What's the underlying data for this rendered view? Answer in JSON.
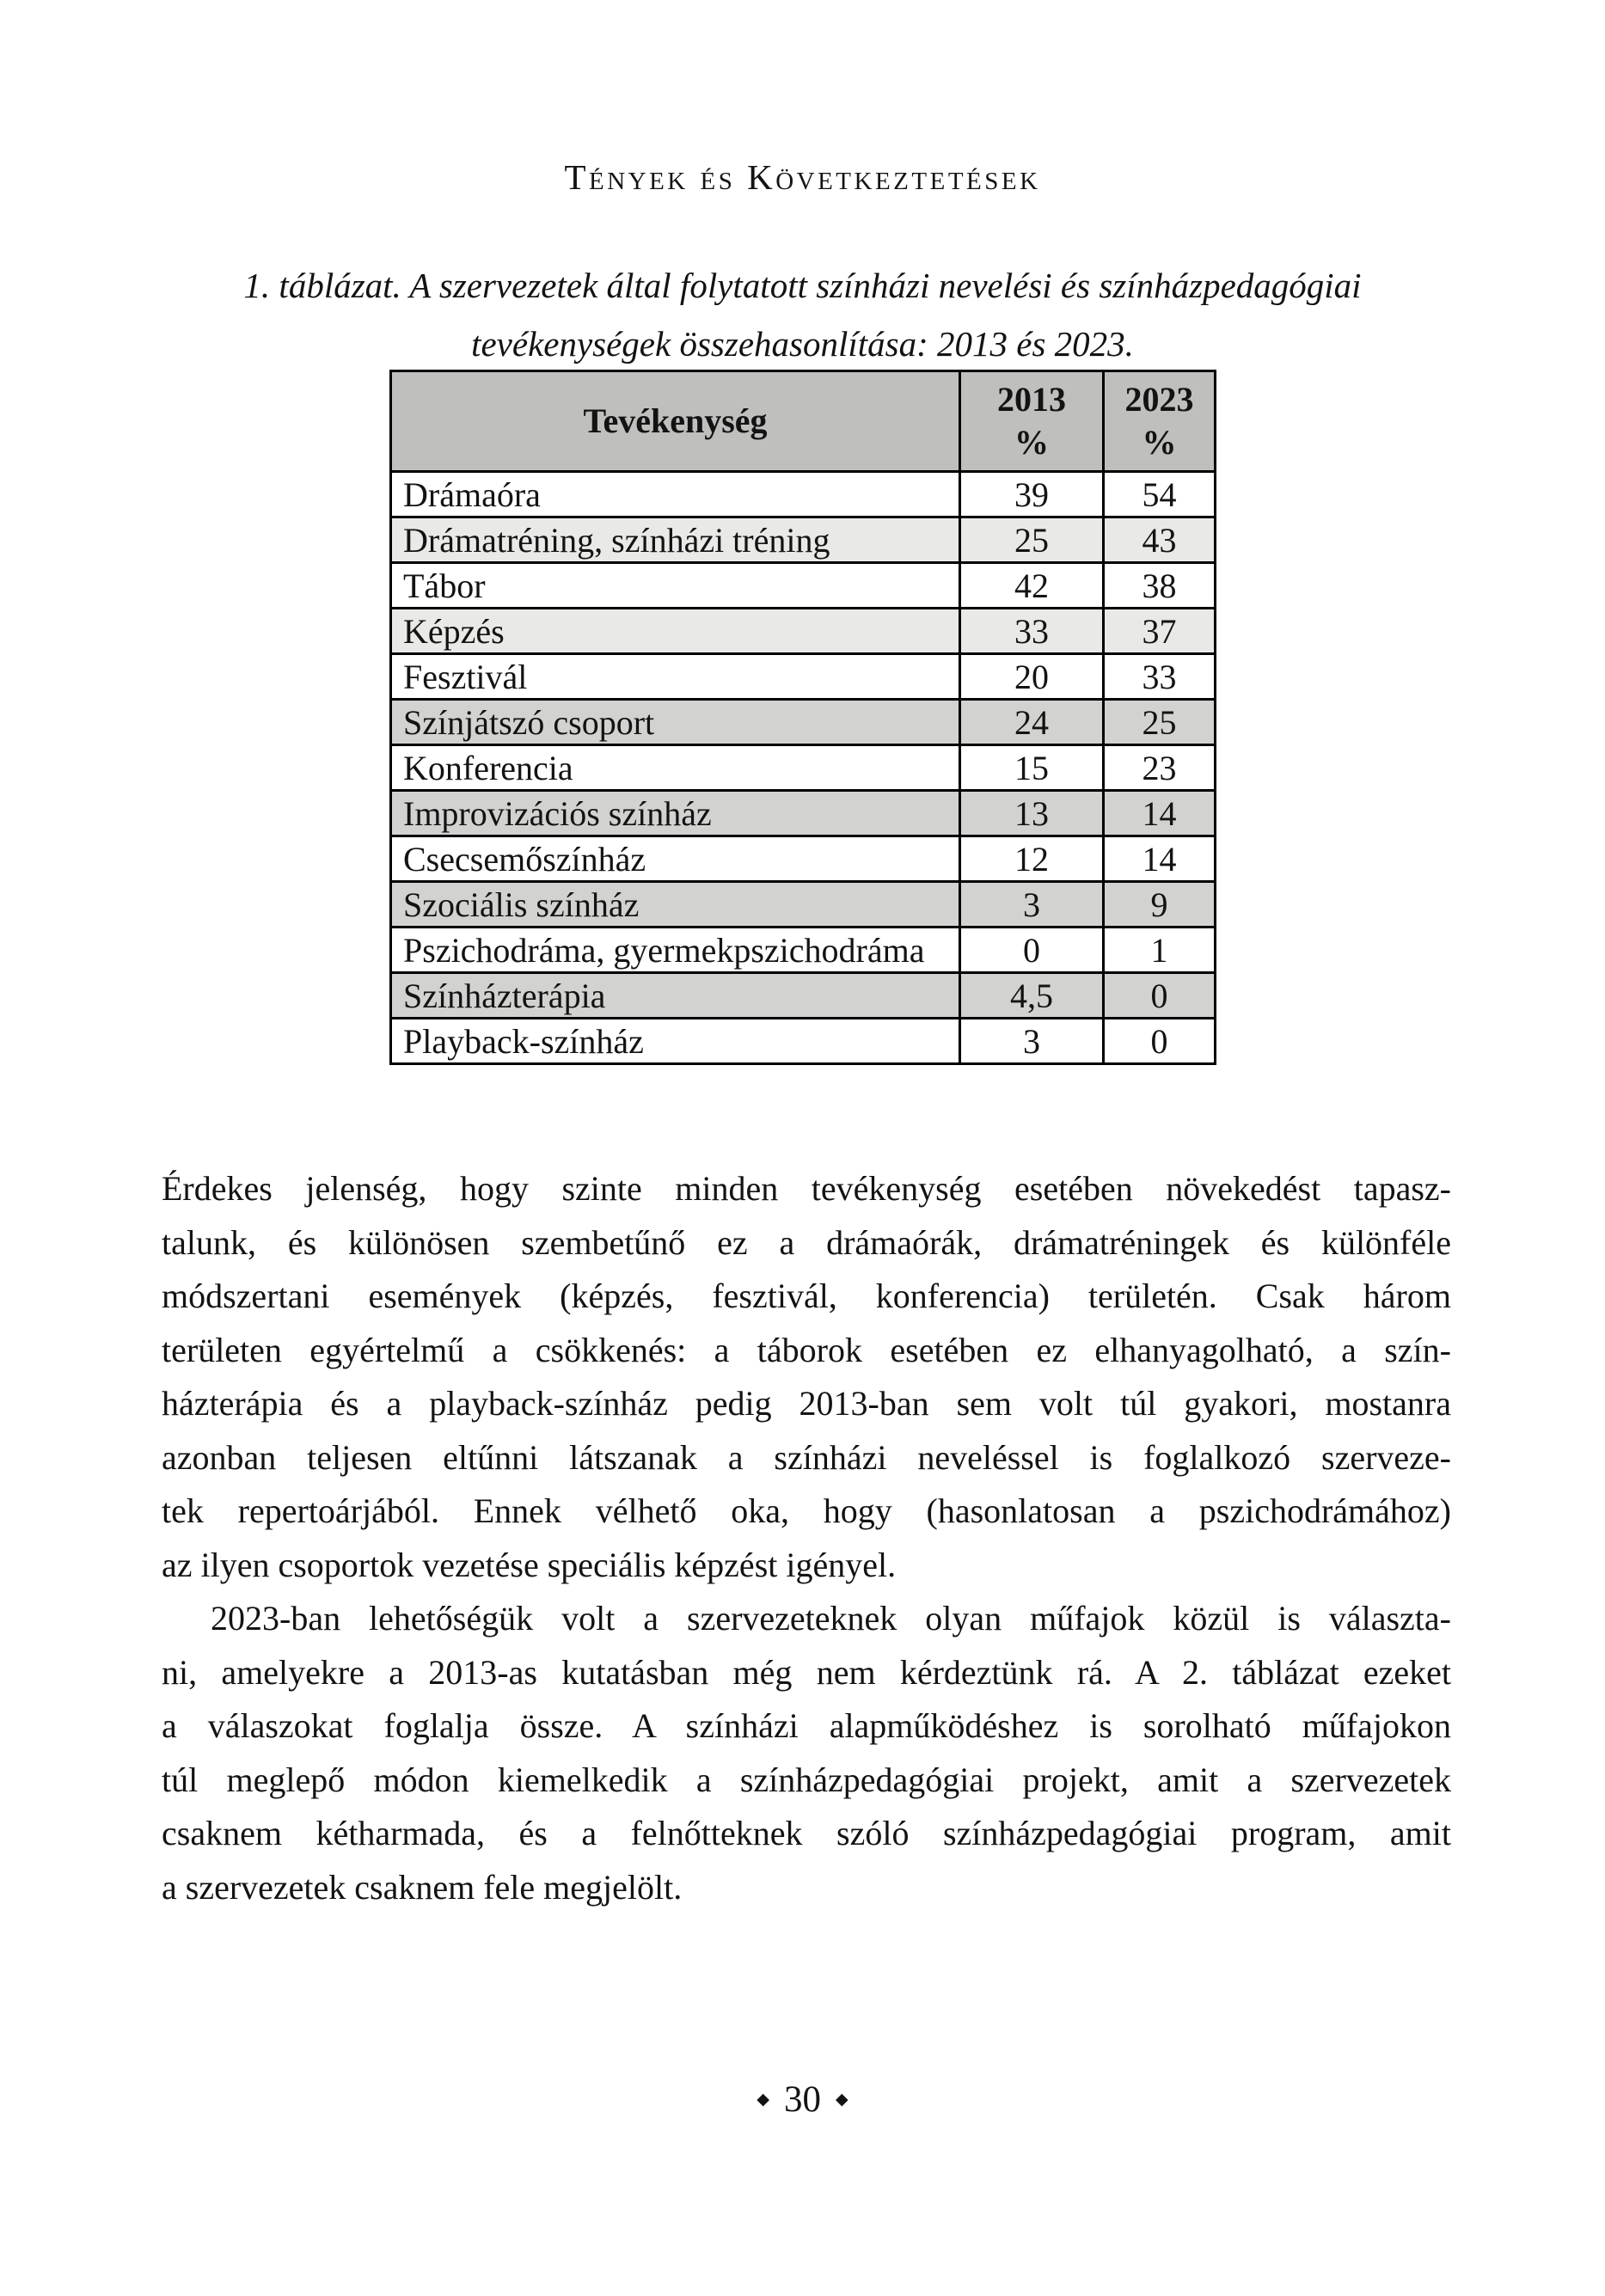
{
  "page": {
    "running_head": "Tények és Következtetések",
    "page_number": "30",
    "ornament": "◆"
  },
  "caption": {
    "lines": [
      "1. táblázat. A szervezetek által folytatott színházi nevelési és színházpedagógiai",
      "tevékenységek összehasonlítása: 2013 és 2023."
    ]
  },
  "table": {
    "header": {
      "activity": "Tevékenység",
      "col2013": {
        "year": "2013",
        "unit": "%"
      },
      "col2023": {
        "year": "2023",
        "unit": "%"
      }
    },
    "rows": [
      {
        "activity": "Drámaóra",
        "y2013": "39",
        "y2023": "54",
        "shade": "white"
      },
      {
        "activity": "Drámatréning, színházi tréning",
        "y2013": "25",
        "y2023": "43",
        "shade": "light"
      },
      {
        "activity": "Tábor",
        "y2013": "42",
        "y2023": "38",
        "shade": "white"
      },
      {
        "activity": "Képzés",
        "y2013": "33",
        "y2023": "37",
        "shade": "light"
      },
      {
        "activity": "Fesztivál",
        "y2013": "20",
        "y2023": "33",
        "shade": "white"
      },
      {
        "activity": "Színjátszó csoport",
        "y2013": "24",
        "y2023": "25",
        "shade": "dark"
      },
      {
        "activity": "Konferencia",
        "y2013": "15",
        "y2023": "23",
        "shade": "white"
      },
      {
        "activity": "Improvizációs színház",
        "y2013": "13",
        "y2023": "14",
        "shade": "dark"
      },
      {
        "activity": "Csecsemőszínház",
        "y2013": "12",
        "y2023": "14",
        "shade": "white"
      },
      {
        "activity": "Szociális színház",
        "y2013": "3",
        "y2023": "9",
        "shade": "dark"
      },
      {
        "activity": "Pszichodráma, gyermekpszichodráma",
        "y2013": "0",
        "y2023": "1",
        "shade": "white"
      },
      {
        "activity": "Színházterápia",
        "y2013": "4,5",
        "y2023": "0",
        "shade": "dark"
      },
      {
        "activity": "Playback-színház",
        "y2013": "3",
        "y2023": "0",
        "shade": "white"
      }
    ]
  },
  "paragraphs": [
    {
      "indent": false,
      "lines": [
        "Érdekes jelenség, hogy szinte minden tevékenység esetében növekedést tapasz-",
        "talunk, és különösen szembetűnő ez a drámaórák, drámatréningek és különféle",
        "módszertani események (képzés, fesztivál, konferencia) területén. Csak három",
        "területen egyértelmű a csökkenés: a táborok esetében ez elhanyagolható, a szín-",
        "házterápia és a playback-színház pedig 2013-ban sem volt túl gyakori, mostanra",
        "azonban teljesen eltűnni látszanak a színházi neveléssel is foglalkozó szerveze-",
        "tek repertoárjából. Ennek vélhető oka, hogy (hasonlatosan a pszichodrámához)",
        "az ilyen csoportok vezetése speciális képzést igényel."
      ]
    },
    {
      "indent": true,
      "lines": [
        "2023-ban lehetőségük volt a szervezeteknek olyan műfajok közül is választa-",
        "ni, amelyekre a 2013-as kutatásban még nem kérdeztünk rá. A 2. táblázat ezeket",
        "a válaszokat foglalja össze. A színházi alapműködéshez is sorolható műfajokon",
        "túl meglepő módon kiemelkedik a színházpedagógiai projekt, amit a szervezetek",
        "csaknem kétharmada, és a felnőtteknek szóló színházpedagógiai program, amit",
        "a szervezetek csaknem fele megjelölt."
      ]
    }
  ],
  "colors": {
    "header_bg": "#bfbfbd",
    "row_light": "#e9e9e7",
    "row_dark": "#d2d2d0",
    "row_white": "#ffffff",
    "border": "#000000",
    "text": "#131313"
  }
}
